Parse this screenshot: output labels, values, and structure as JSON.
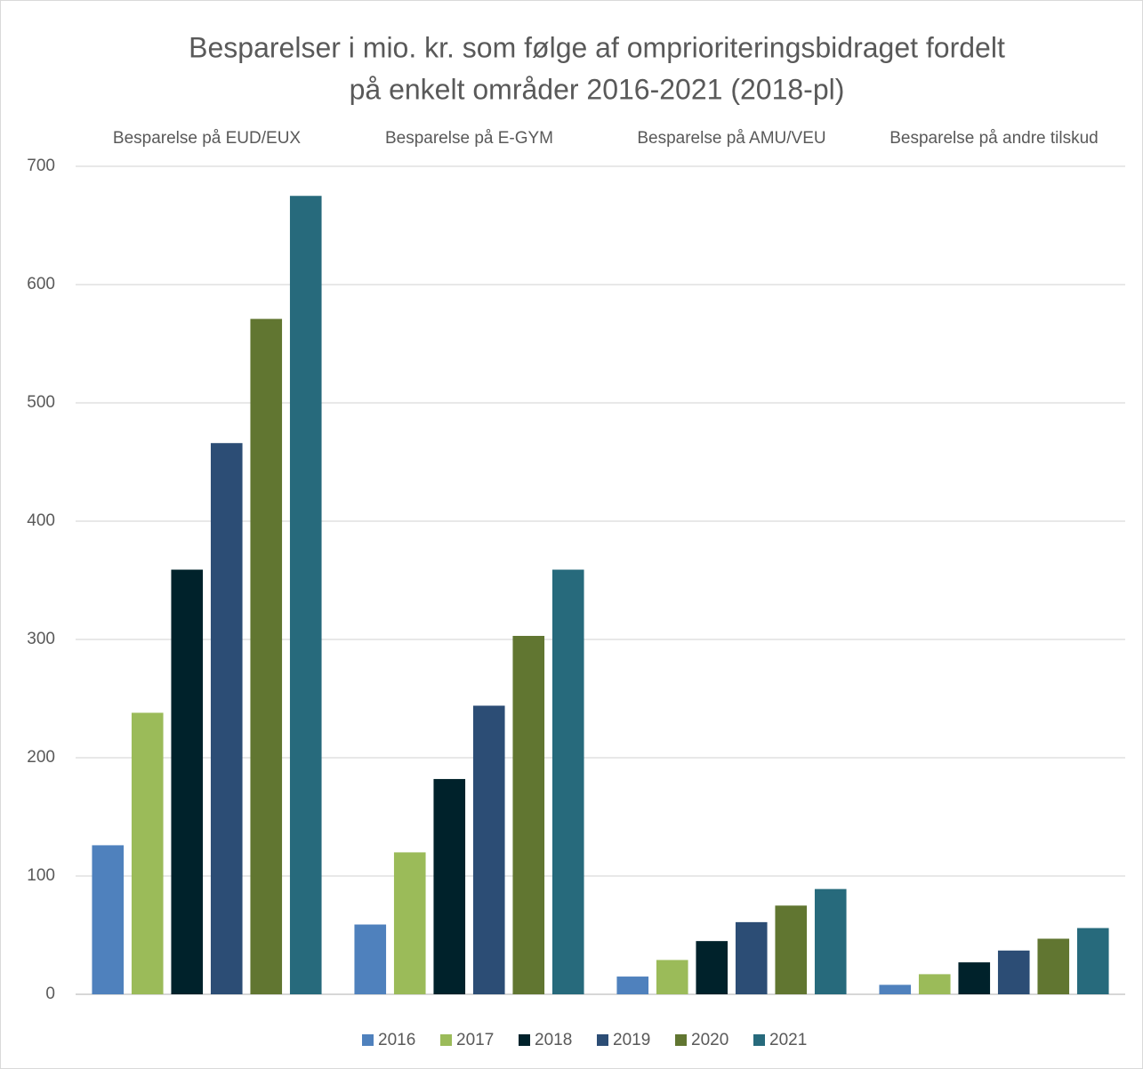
{
  "chart_data": {
    "type": "bar",
    "title": [
      "Besparelser i mio. kr. som følge af omprioriteringsbidraget fordelt",
      "på enkelt områder 2016-2021 (2018-pl)"
    ],
    "categories": [
      "Besparelse på EUD/EUX",
      "Besparelse på E-GYM",
      "Besparelse på AMU/VEU",
      "Besparelse på andre tilskud"
    ],
    "series": [
      {
        "name": "2016",
        "color": "#4f81bd",
        "values": [
          126,
          59,
          15,
          8
        ]
      },
      {
        "name": "2017",
        "color": "#9bbb59",
        "values": [
          238,
          120,
          29,
          17
        ]
      },
      {
        "name": "2018",
        "color": "#00222b",
        "values": [
          359,
          182,
          45,
          27
        ]
      },
      {
        "name": "2019",
        "color": "#2c4d75",
        "values": [
          466,
          244,
          61,
          37
        ]
      },
      {
        "name": "2020",
        "color": "#617631",
        "values": [
          571,
          303,
          75,
          47
        ]
      },
      {
        "name": "2021",
        "color": "#276a7c",
        "values": [
          675,
          359,
          89,
          56
        ]
      }
    ],
    "ylim": [
      0,
      700
    ],
    "yticks": [
      0,
      100,
      200,
      300,
      400,
      500,
      600,
      700
    ],
    "grid": true,
    "legend": "bottom"
  }
}
